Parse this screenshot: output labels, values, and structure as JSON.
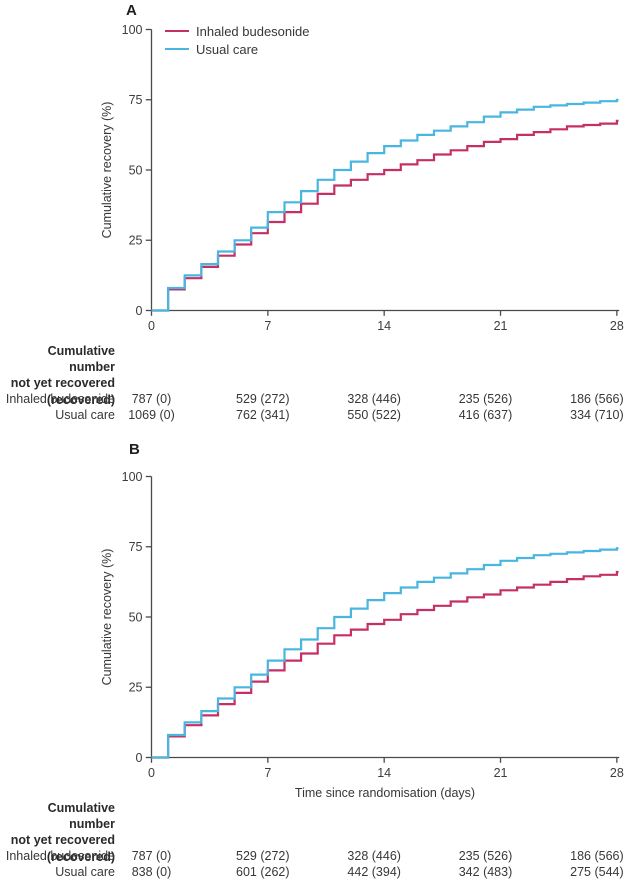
{
  "figure_title": "Cumulative recovery",
  "colors": {
    "budesonide": "#c62f66",
    "usual_care": "#49b6e0",
    "axis": "#4a4a4a",
    "text": "#373737"
  },
  "chart_data": [
    {
      "type": "line",
      "subtype": "step",
      "panel": "A",
      "xlabel": "",
      "ylabel": "Cumulative recovery (%)",
      "xlim": [
        0,
        28.3
      ],
      "ylim": [
        0,
        100
      ],
      "xticks": [
        0,
        7,
        14,
        21,
        28
      ],
      "yticks": [
        0,
        25,
        50,
        75,
        100
      ],
      "grid": false,
      "legend_position": "top-left-inside",
      "x_days": [
        0,
        1,
        2,
        3,
        4,
        5,
        6,
        7,
        8,
        9,
        10,
        11,
        12,
        13,
        14,
        15,
        16,
        17,
        18,
        19,
        20,
        21,
        22,
        23,
        24,
        25,
        26,
        27,
        28
      ],
      "series": [
        {
          "name": "Inhaled budesonide",
          "color": "#c62f66",
          "values": [
            0,
            7.5,
            11.5,
            15.5,
            19.5,
            23.5,
            27.5,
            31.5,
            35,
            38,
            41.5,
            44.5,
            46.5,
            48.5,
            50,
            52,
            53.5,
            55.5,
            57,
            58.5,
            60,
            61,
            62.5,
            63.5,
            64.5,
            65.5,
            66,
            66.5,
            67.5
          ]
        },
        {
          "name": "Usual care",
          "color": "#49b6e0",
          "values": [
            0,
            8,
            12.5,
            16.5,
            21,
            25,
            29.5,
            35,
            38.5,
            42.5,
            46.5,
            50,
            53,
            56,
            58.5,
            60.5,
            62.5,
            64,
            65.5,
            67,
            69,
            70.5,
            71.5,
            72.5,
            73,
            73.5,
            74,
            74.5,
            75
          ]
        }
      ],
      "risk_table": {
        "header": [
          "Cumulative number",
          "not yet recovered",
          "(recovered)"
        ],
        "column_days": [
          0,
          7,
          14,
          21,
          28
        ],
        "rows": [
          {
            "label": "Inhaled budesonide",
            "values": [
              "787 (0)",
              "529 (272)",
              "328 (446)",
              "235 (526)",
              "186 (566)"
            ]
          },
          {
            "label": "Usual care",
            "values": [
              "1069 (0)",
              "762 (341)",
              "550 (522)",
              "416 (637)",
              "334 (710)"
            ]
          }
        ]
      }
    },
    {
      "type": "line",
      "subtype": "step",
      "panel": "B",
      "xlabel": "Time since randomisation (days)",
      "ylabel": "Cumulative recovery (%)",
      "xlim": [
        0,
        28.3
      ],
      "ylim": [
        0,
        100
      ],
      "xticks": [
        0,
        7,
        14,
        21,
        28
      ],
      "yticks": [
        0,
        25,
        50,
        75,
        100
      ],
      "grid": false,
      "legend_position": "none",
      "x_days": [
        0,
        1,
        2,
        3,
        4,
        5,
        6,
        7,
        8,
        9,
        10,
        11,
        12,
        13,
        14,
        15,
        16,
        17,
        18,
        19,
        20,
        21,
        22,
        23,
        24,
        25,
        26,
        27,
        28
      ],
      "series": [
        {
          "name": "Inhaled budesonide",
          "color": "#c62f66",
          "values": [
            0,
            7.5,
            11.5,
            15,
            19,
            23,
            27,
            31,
            34.5,
            37,
            40.5,
            43.5,
            45.5,
            47.5,
            49,
            51,
            52.5,
            54,
            55.5,
            57,
            58,
            59.5,
            60.5,
            61.5,
            62.5,
            63.5,
            64.5,
            65,
            66
          ]
        },
        {
          "name": "Usual care",
          "color": "#49b6e0",
          "values": [
            0,
            8,
            12.5,
            16.5,
            21,
            25,
            29.5,
            34.5,
            38.5,
            42,
            46,
            50,
            53,
            56,
            58.5,
            60.5,
            62.5,
            64,
            65.5,
            67,
            68.5,
            70,
            71,
            72,
            72.5,
            73,
            73.5,
            74,
            74.5
          ]
        }
      ],
      "risk_table": {
        "header": [
          "Cumulative number",
          "not yet recovered",
          "(recovered)"
        ],
        "column_days": [
          0,
          7,
          14,
          21,
          28
        ],
        "rows": [
          {
            "label": "Inhaled budesonide",
            "values": [
              "787 (0)",
              "529 (272)",
              "328 (446)",
              "235 (526)",
              "186 (566)"
            ]
          },
          {
            "label": "Usual care",
            "values": [
              "838 (0)",
              "601 (262)",
              "442 (394)",
              "342 (483)",
              "275 (544)"
            ]
          }
        ]
      }
    }
  ]
}
